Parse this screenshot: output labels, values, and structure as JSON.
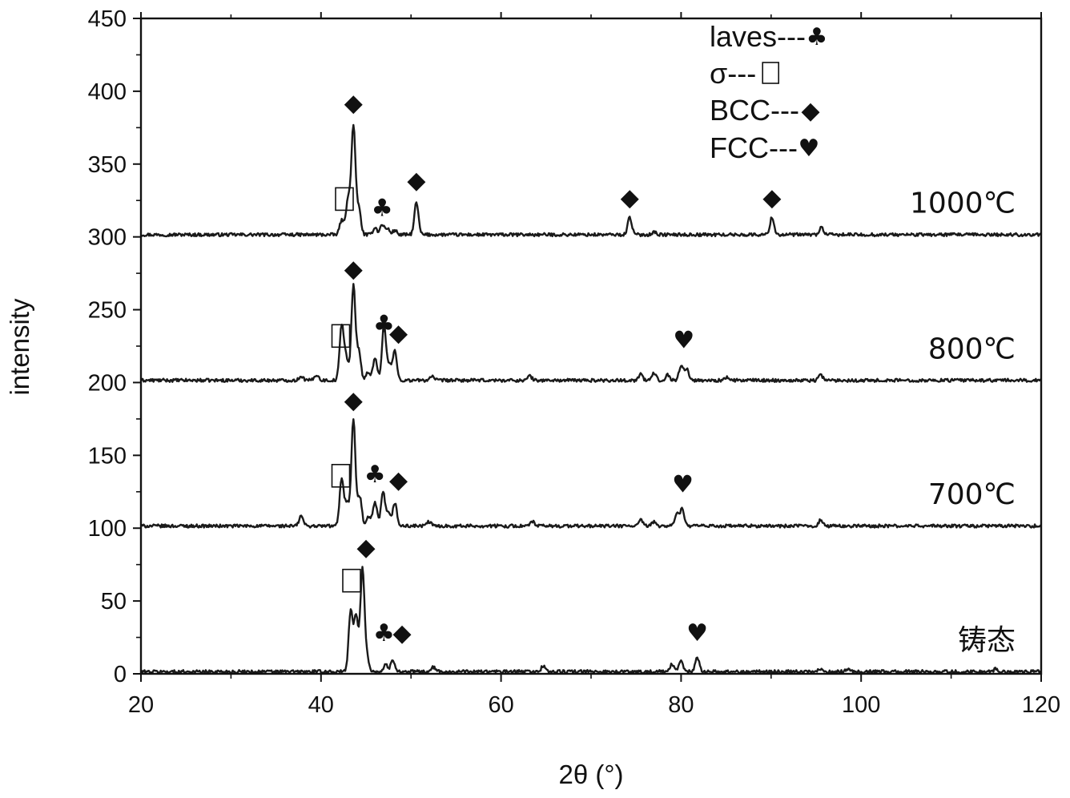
{
  "chart_data": {
    "type": "line",
    "title": "",
    "xlabel": "2θ (°)",
    "ylabel": "intensity",
    "xlim": [
      20,
      120
    ],
    "ylim": [
      0,
      450
    ],
    "x_ticks": [
      "20",
      "40",
      "60",
      "80",
      "100",
      "120"
    ],
    "y_ticks": [
      "0",
      "50",
      "100",
      "150",
      "200",
      "250",
      "300",
      "350",
      "400",
      "450"
    ],
    "grid": false,
    "legend": {
      "placement": "top-right",
      "entries": [
        {
          "text": "laves---",
          "symbol": "club"
        },
        {
          "text": "σ---",
          "symbol": "sigma-box"
        },
        {
          "text": "BCC---",
          "symbol": "diamond"
        },
        {
          "text": "FCC---",
          "symbol": "heart"
        }
      ]
    },
    "symbols": {
      "club": "♣",
      "diamond": "◆",
      "heart": "♥",
      "sigma-box": "▭"
    },
    "series": [
      {
        "name": "1000℃",
        "baseline": 300,
        "peaks": [
          [
            42.3,
            10
          ],
          [
            43.0,
            25
          ],
          [
            43.6,
            75
          ],
          [
            44.2,
            18
          ],
          [
            46.0,
            5
          ],
          [
            46.8,
            7
          ],
          [
            47.4,
            4
          ],
          [
            48.2,
            3
          ],
          [
            50.6,
            22
          ],
          [
            74.3,
            12
          ],
          [
            77.0,
            2
          ],
          [
            90.1,
            12
          ],
          [
            95.6,
            5
          ]
        ],
        "markers": [
          {
            "x": 43.6,
            "y": 392,
            "symbol": "diamond"
          },
          {
            "x": 46.8,
            "y": 320,
            "symbol": "club"
          },
          {
            "x": 50.6,
            "y": 339,
            "symbol": "diamond"
          },
          {
            "x": 74.3,
            "y": 327,
            "symbol": "diamond"
          },
          {
            "x": 90.1,
            "y": 327,
            "symbol": "diamond"
          },
          {
            "x": 42.6,
            "y": 326,
            "symbol": "sigma-box"
          }
        ]
      },
      {
        "name": "800℃",
        "baseline": 200,
        "peaks": [
          [
            37.8,
            3
          ],
          [
            39.5,
            4
          ],
          [
            42.3,
            38
          ],
          [
            42.8,
            15
          ],
          [
            43.6,
            65
          ],
          [
            44.2,
            20
          ],
          [
            45.2,
            5
          ],
          [
            46.0,
            16
          ],
          [
            47.0,
            38
          ],
          [
            47.6,
            10
          ],
          [
            48.2,
            20
          ],
          [
            52.3,
            3
          ],
          [
            63.2,
            3
          ],
          [
            75.5,
            4
          ],
          [
            77.0,
            5
          ],
          [
            78.5,
            4
          ],
          [
            80.0,
            10
          ],
          [
            80.6,
            8
          ],
          [
            85.0,
            2
          ],
          [
            95.5,
            4
          ]
        ],
        "markers": [
          {
            "x": 43.6,
            "y": 278,
            "symbol": "diamond"
          },
          {
            "x": 47.0,
            "y": 240,
            "symbol": "club"
          },
          {
            "x": 48.6,
            "y": 234,
            "symbol": "diamond"
          },
          {
            "x": 80.3,
            "y": 229,
            "symbol": "heart"
          },
          {
            "x": 42.2,
            "y": 232,
            "symbol": "sigma-box"
          }
        ]
      },
      {
        "name": "700℃",
        "baseline": 100,
        "peaks": [
          [
            37.8,
            7
          ],
          [
            42.3,
            33
          ],
          [
            42.9,
            16
          ],
          [
            43.6,
            73
          ],
          [
            44.3,
            20
          ],
          [
            45.3,
            6
          ],
          [
            46.0,
            16
          ],
          [
            46.9,
            23
          ],
          [
            47.5,
            8
          ],
          [
            48.2,
            16
          ],
          [
            52.0,
            3
          ],
          [
            63.5,
            3
          ],
          [
            75.5,
            4
          ],
          [
            77.0,
            3
          ],
          [
            79.5,
            8
          ],
          [
            80.1,
            12
          ],
          [
            95.5,
            4
          ]
        ],
        "markers": [
          {
            "x": 43.6,
            "y": 188,
            "symbol": "diamond"
          },
          {
            "x": 46.0,
            "y": 137,
            "symbol": "club"
          },
          {
            "x": 48.6,
            "y": 133,
            "symbol": "diamond"
          },
          {
            "x": 80.2,
            "y": 130,
            "symbol": "heart"
          },
          {
            "x": 42.2,
            "y": 136,
            "symbol": "sigma-box"
          }
        ]
      },
      {
        "name": "铸态",
        "baseline": 0,
        "peaks": [
          [
            43.3,
            42
          ],
          [
            43.9,
            38
          ],
          [
            44.6,
            70
          ],
          [
            45.1,
            10
          ],
          [
            47.2,
            5
          ],
          [
            48.0,
            8
          ],
          [
            52.5,
            3
          ],
          [
            64.7,
            4
          ],
          [
            79.0,
            5
          ],
          [
            80.0,
            7
          ],
          [
            81.8,
            10
          ],
          [
            95.5,
            2
          ],
          [
            98.5,
            2
          ],
          [
            115.0,
            2
          ]
        ],
        "markers": [
          {
            "x": 45.0,
            "y": 87,
            "symbol": "diamond"
          },
          {
            "x": 47.0,
            "y": 28,
            "symbol": "club"
          },
          {
            "x": 49.0,
            "y": 28,
            "symbol": "diamond"
          },
          {
            "x": 81.8,
            "y": 28,
            "symbol": "heart"
          },
          {
            "x": 43.4,
            "y": 64,
            "symbol": "sigma-box"
          }
        ]
      }
    ]
  }
}
